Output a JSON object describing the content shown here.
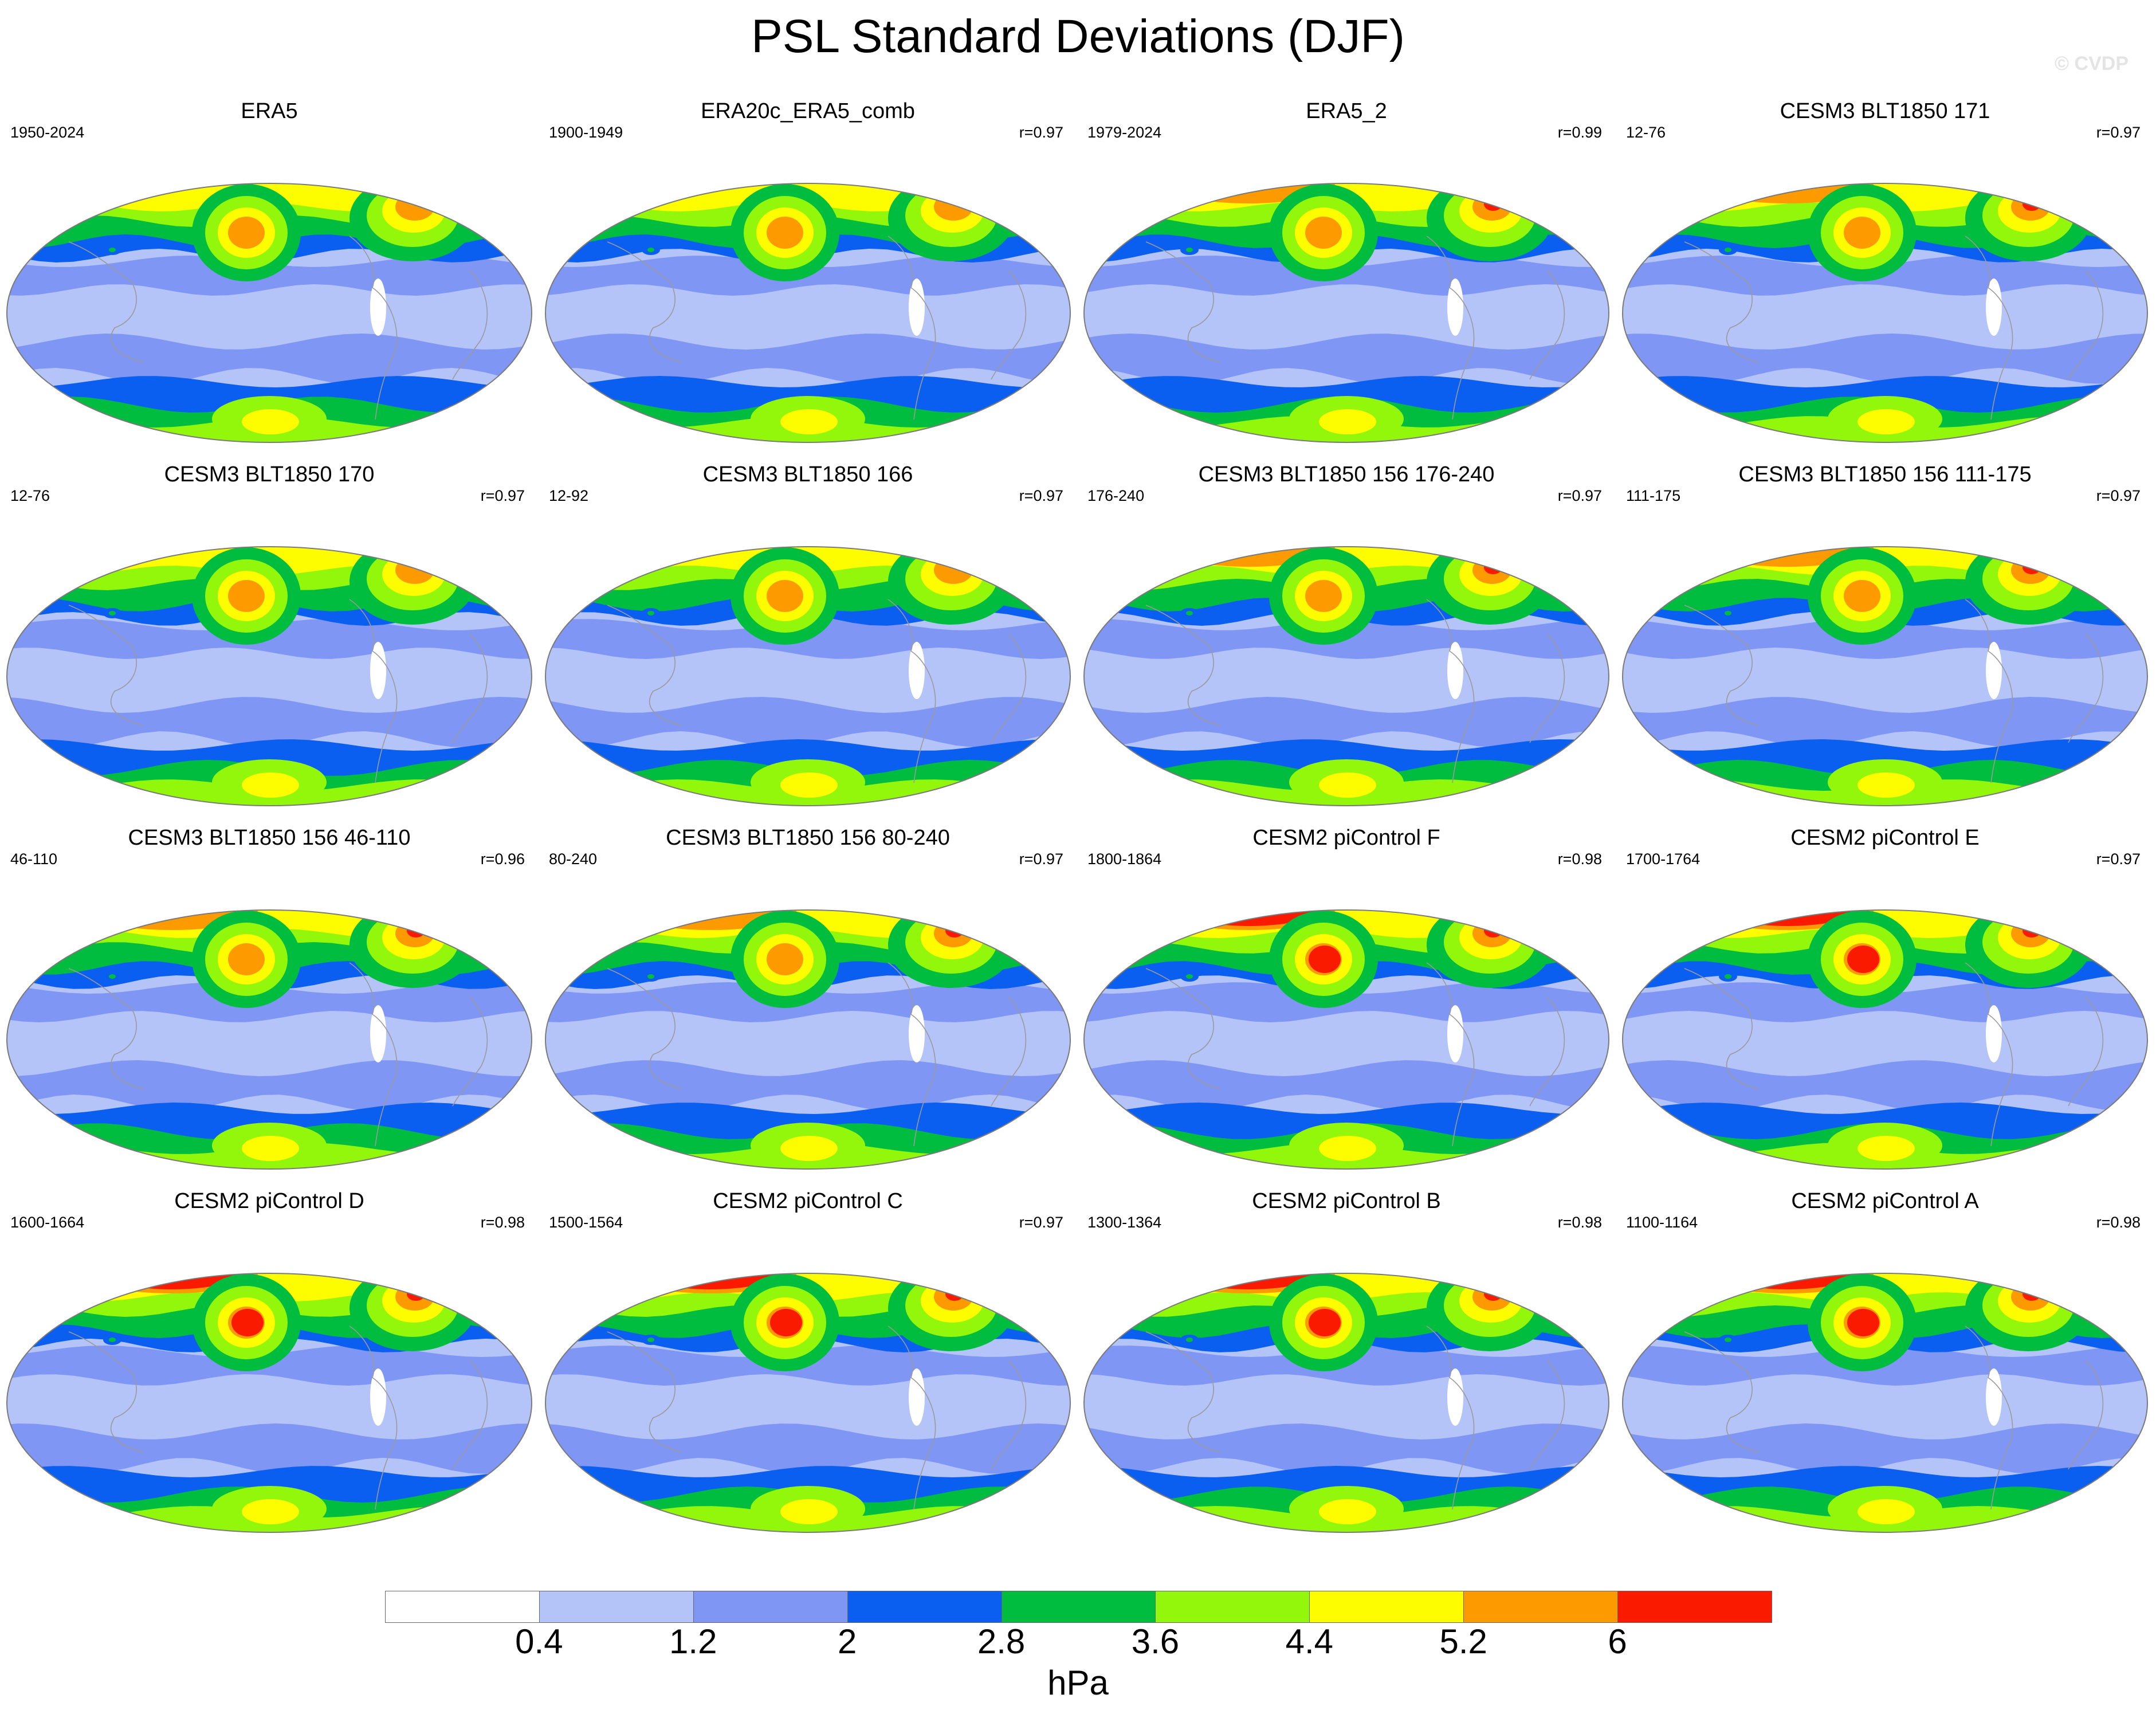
{
  "title": "PSL Standard Deviations (DJF)",
  "watermark": "© CVDP",
  "panels": [
    {
      "title": "ERA5",
      "period": "1950-2024",
      "corr": "",
      "pattern": "weak"
    },
    {
      "title": "ERA20c_ERA5_comb",
      "period": "1900-1949",
      "corr": "r=0.97",
      "pattern": "weak"
    },
    {
      "title": "ERA5_2",
      "period": "1979-2024",
      "corr": "r=0.99",
      "pattern": "medium"
    },
    {
      "title": "CESM3 BLT1850 171",
      "period": "12-76",
      "corr": "r=0.97",
      "pattern": "medium"
    },
    {
      "title": "CESM3 BLT1850 170",
      "period": "12-76",
      "corr": "r=0.97",
      "pattern": "weak"
    },
    {
      "title": "CESM3 BLT1850 166",
      "period": "12-92",
      "corr": "r=0.97",
      "pattern": "weak"
    },
    {
      "title": "CESM3 BLT1850 156 176-240",
      "period": "176-240",
      "corr": "r=0.97",
      "pattern": "medium"
    },
    {
      "title": "CESM3 BLT1850 156 111-175",
      "period": "111-175",
      "corr": "r=0.97",
      "pattern": "medium"
    },
    {
      "title": "CESM3 BLT1850 156 46-110",
      "period": "46-110",
      "corr": "r=0.96",
      "pattern": "medium"
    },
    {
      "title": "CESM3 BLT1850 156 80-240",
      "period": "80-240",
      "corr": "r=0.97",
      "pattern": "medium"
    },
    {
      "title": "CESM2 piControl F",
      "period": "1800-1864",
      "corr": "r=0.98",
      "pattern": "strong"
    },
    {
      "title": "CESM2 piControl E",
      "period": "1700-1764",
      "corr": "r=0.97",
      "pattern": "strong"
    },
    {
      "title": "CESM2 piControl D",
      "period": "1600-1664",
      "corr": "r=0.98",
      "pattern": "strong"
    },
    {
      "title": "CESM2 piControl C",
      "period": "1500-1564",
      "corr": "r=0.97",
      "pattern": "strong"
    },
    {
      "title": "CESM2 piControl B",
      "period": "1300-1364",
      "corr": "r=0.98",
      "pattern": "strong"
    },
    {
      "title": "CESM2 piControl A",
      "period": "1100-1164",
      "corr": "r=0.98",
      "pattern": "strong"
    }
  ],
  "colorbar": {
    "colors": [
      "#ffffff",
      "#b4c4f8",
      "#7f96f5",
      "#0a5ff0",
      "#00bd3f",
      "#92f70a",
      "#fefd00",
      "#fd9a00",
      "#fa1a00"
    ],
    "labels": [
      "0.4",
      "1.2",
      "2",
      "2.8",
      "3.6",
      "4.4",
      "5.2",
      "6"
    ],
    "units": "hPa"
  }
}
